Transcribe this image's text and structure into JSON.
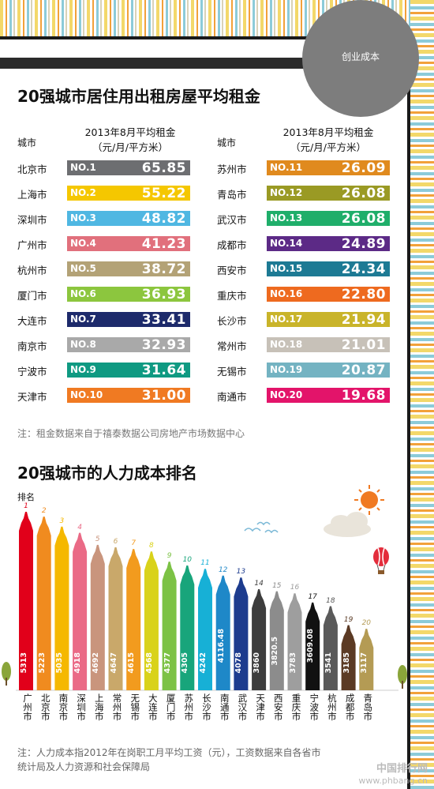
{
  "badge": "创业成本",
  "rent": {
    "title": "20强城市居住用出租房屋平均租金",
    "col_city": "城市",
    "col_rent_1": "2013年8月平均租金",
    "col_rent_2": "（元/月/平方米）",
    "rows": [
      {
        "city": "北京市",
        "rank": "NO.1",
        "value": "65.85",
        "color": "#6d6e71"
      },
      {
        "city": "上海市",
        "rank": "NO.2",
        "value": "55.22",
        "color": "#f5c700"
      },
      {
        "city": "深圳市",
        "rank": "NO.3",
        "value": "48.82",
        "color": "#4fb7e2"
      },
      {
        "city": "广州市",
        "rank": "NO.4",
        "value": "41.23",
        "color": "#e1707c"
      },
      {
        "city": "杭州市",
        "rank": "NO.5",
        "value": "38.72",
        "color": "#b3a276"
      },
      {
        "city": "厦门市",
        "rank": "NO.6",
        "value": "36.93",
        "color": "#8cc63e"
      },
      {
        "city": "大连市",
        "rank": "NO.7",
        "value": "33.41",
        "color": "#1d2a6b"
      },
      {
        "city": "南京市",
        "rank": "NO.8",
        "value": "32.93",
        "color": "#a9a9a9"
      },
      {
        "city": "宁波市",
        "rank": "NO.9",
        "value": "31.64",
        "color": "#0f9a82"
      },
      {
        "city": "天津市",
        "rank": "NO.10",
        "value": "31.00",
        "color": "#f07a22"
      },
      {
        "city": "苏州市",
        "rank": "NO.11",
        "value": "26.09",
        "color": "#e08a1e"
      },
      {
        "city": "青岛市",
        "rank": "NO.12",
        "value": "26.08",
        "color": "#9a9a24"
      },
      {
        "city": "武汉市",
        "rank": "NO.13",
        "value": "26.08",
        "color": "#1fae6a"
      },
      {
        "city": "成都市",
        "rank": "NO.14",
        "value": "24.89",
        "color": "#5c2a86"
      },
      {
        "city": "西安市",
        "rank": "NO.15",
        "value": "24.34",
        "color": "#1d7a94"
      },
      {
        "city": "重庆市",
        "rank": "NO.16",
        "value": "22.80",
        "color": "#ee6a1f"
      },
      {
        "city": "长沙市",
        "rank": "NO.17",
        "value": "21.94",
        "color": "#c9b42a"
      },
      {
        "city": "常州市",
        "rank": "NO.18",
        "value": "21.01",
        "color": "#c7c1b8"
      },
      {
        "city": "无锡市",
        "rank": "NO.19",
        "value": "20.87",
        "color": "#74b3c2"
      },
      {
        "city": "南通市",
        "rank": "NO.20",
        "value": "19.68",
        "color": "#e3146a"
      }
    ],
    "note": "注：租金数据来自于禧泰数据公司房地产市场数据中心"
  },
  "labor": {
    "title": "20强城市的人力成本排名",
    "ylabel": "排名",
    "note_line1": "注：人力成本指2012年在岗职工月平均工资（元），工资数据来自各省市",
    "note_line2": "统计局及人力资源和社会保障局"
  },
  "chart_data": {
    "type": "bar",
    "title": "20强城市的人力成本排名",
    "ylabel": "排名",
    "categories": [
      "广州市",
      "北京市",
      "南京市",
      "深圳市",
      "上海市",
      "常州市",
      "无锡市",
      "大连市",
      "厦门市",
      "苏州市",
      "长沙市",
      "南通市",
      "武汉市",
      "天津市",
      "西安市",
      "重庆市",
      "宁波市",
      "杭州市",
      "成都市",
      "青岛市"
    ],
    "ranks": [
      "1",
      "2",
      "3",
      "4",
      "5",
      "6",
      "7",
      "8",
      "9",
      "10",
      "11",
      "12",
      "13",
      "14",
      "15",
      "16",
      "17",
      "18",
      "19",
      "20"
    ],
    "value_labels": [
      "5313",
      "5223",
      "5035",
      "4918",
      "4692",
      "4647",
      "4615",
      "4568",
      "4377",
      "4305",
      "4242",
      "4116.48",
      "4078",
      "3860",
      "3820.5",
      "3783",
      "3609.08",
      "3541",
      "3185",
      "3117"
    ],
    "values": [
      5313,
      5223,
      5035,
      4918,
      4692,
      4647,
      4615,
      4568,
      4377,
      4305,
      4242,
      4116.48,
      4078,
      3860,
      3820.5,
      3783,
      3609.08,
      3541,
      3185,
      3117
    ],
    "colors": [
      "#e1001a",
      "#f08b1f",
      "#f5b800",
      "#ea6a86",
      "#c9957d",
      "#c9a86a",
      "#f29b1e",
      "#d9d21a",
      "#7cc245",
      "#18a57b",
      "#17b0d6",
      "#1e88c8",
      "#1d3c8e",
      "#3d3d3d",
      "#8c8c8c",
      "#9e9e9e",
      "#111111",
      "#5a5a5a",
      "#5b3a24",
      "#b49b54"
    ]
  },
  "watermark": {
    "site": "中国排行网",
    "url": "www.phbang.cn"
  }
}
